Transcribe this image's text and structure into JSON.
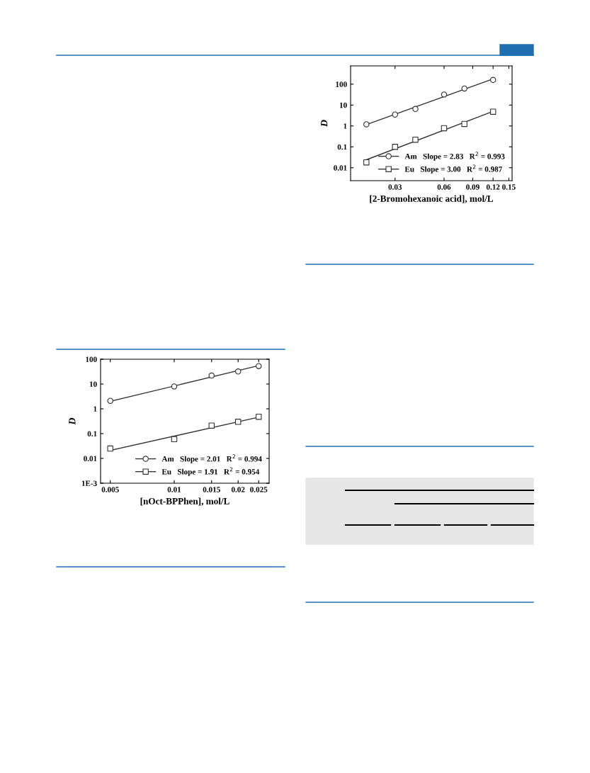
{
  "chart_data": [
    {
      "type": "scatter",
      "xlabel": "[nOct-BPPhen], mol/L",
      "ylabel": "D",
      "log": "xy",
      "legend": "bottom right",
      "grid": false,
      "xlim": [
        0.0045,
        0.028
      ],
      "xticks": [
        0.005,
        0.01,
        0.015,
        0.02,
        0.025
      ],
      "ylim": [
        0.001,
        100
      ],
      "yticks": [
        {
          "value": 0.001,
          "label": "1E-3"
        },
        0.01,
        0.1,
        1,
        10,
        100
      ],
      "series": [
        {
          "name": "Am   Slope = 2.01   R$^{2}$ = 0.994",
          "marker": "circle",
          "color": "#333333",
          "x": [
            0.005,
            0.01,
            0.015,
            0.02,
            0.025
          ],
          "values": [
            2.1,
            8,
            22,
            32,
            53
          ]
        },
        {
          "name": "Eu   Slope = 1.91   R$^{2}$ = 0.954",
          "marker": "square",
          "color": "#333333",
          "x": [
            0.005,
            0.01,
            0.015,
            0.02,
            0.025
          ],
          "values": [
            0.025,
            0.06,
            0.21,
            0.3,
            0.48
          ]
        },
        {
          "type": "line",
          "marker": "none",
          "color": "#333333",
          "x": [
            0.005,
            0.025
          ],
          "values": [
            2.0,
            55
          ]
        },
        {
          "type": "line",
          "marker": "none",
          "color": "#333333",
          "x": [
            0.005,
            0.025
          ],
          "values": [
            0.021,
            0.46
          ]
        }
      ]
    },
    {
      "type": "scatter",
      "xlabel": "[2-Bromohexanoic acid], mol/L",
      "ylabel": "D",
      "log": "xy",
      "legend": "bottom right",
      "grid": false,
      "xlim": [
        0.016,
        0.157
      ],
      "xticks": [
        0.03,
        0.06,
        0.09,
        0.12,
        0.15
      ],
      "ylim": [
        0.0024,
        750
      ],
      "yticks": [
        0.01,
        0.1,
        1,
        10,
        100
      ],
      "series": [
        {
          "name": "Am   Slope = 2.83   R$^{2}$ = 0.993",
          "marker": "circle",
          "color": "#333333",
          "x": [
            0.02,
            0.03,
            0.04,
            0.06,
            0.08,
            0.12
          ],
          "values": [
            1.2,
            3.5,
            6.5,
            32,
            62,
            160
          ]
        },
        {
          "name": "Eu   Slope = 3.00   R$^{2}$ = 0.987",
          "marker": "square",
          "color": "#333333",
          "x": [
            0.02,
            0.03,
            0.04,
            0.06,
            0.08,
            0.12
          ],
          "values": [
            0.018,
            0.1,
            0.22,
            0.78,
            1.25,
            4.8
          ]
        },
        {
          "type": "line",
          "marker": "none",
          "color": "#333333",
          "x": [
            0.02,
            0.12
          ],
          "values": [
            1.15,
            180
          ]
        },
        {
          "type": "line",
          "marker": "none",
          "color": "#333333",
          "x": [
            0.02,
            0.12
          ],
          "values": [
            0.024,
            5.0
          ]
        }
      ]
    }
  ]
}
